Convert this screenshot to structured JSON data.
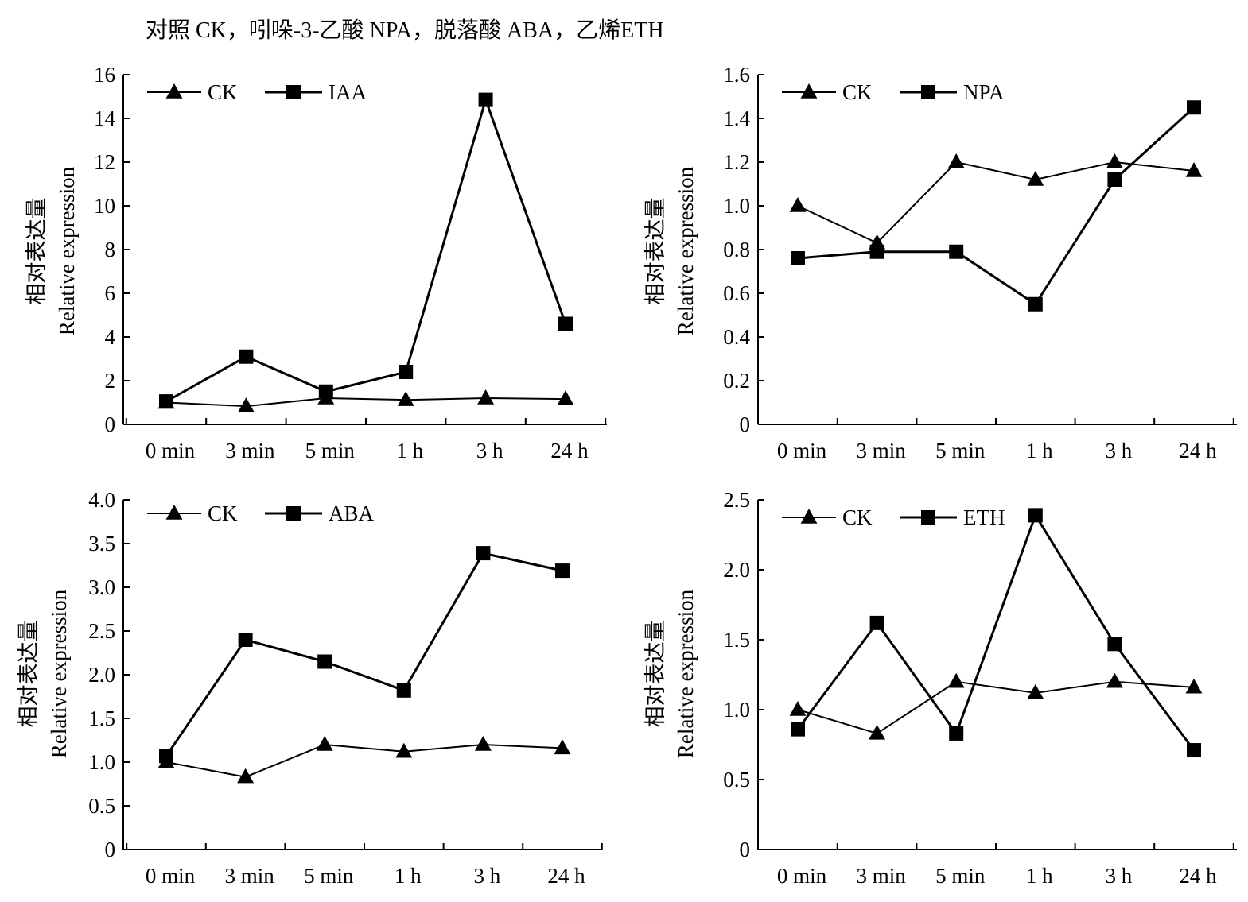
{
  "caption": "对照 CK，吲哚-3-乙酸 NPA，脱落酸 ABA，乙烯ETH",
  "chart_data": [
    {
      "type": "line",
      "categories": [
        "0 min",
        "3 min",
        "5 min",
        "1 h",
        "3 h",
        "24 h"
      ],
      "ylabel_zh": "相对表达量",
      "ylabel_en": "Relative expression",
      "ylim": [
        0,
        16
      ],
      "yticks": [
        "0",
        "2",
        "4",
        "6",
        "8",
        "10",
        "12",
        "14",
        "16"
      ],
      "legend_position": "top-left",
      "series": [
        {
          "name": "CK",
          "marker": "triangle",
          "values": [
            1.0,
            0.83,
            1.2,
            1.12,
            1.2,
            1.16
          ]
        },
        {
          "name": "IAA",
          "marker": "square",
          "values": [
            1.05,
            3.1,
            1.5,
            2.4,
            14.85,
            4.6
          ]
        }
      ]
    },
    {
      "type": "line",
      "categories": [
        "0 min",
        "3 min",
        "5 min",
        "1 h",
        "3 h",
        "24 h"
      ],
      "ylabel_zh": "相对表达量",
      "ylabel_en": "Relative expression",
      "ylim": [
        0,
        1.6
      ],
      "yticks": [
        "0",
        "0.2",
        "0.4",
        "0.6",
        "0.8",
        "1.0",
        "1.2",
        "1.4",
        "1.6"
      ],
      "legend_position": "top-left",
      "series": [
        {
          "name": "CK",
          "marker": "triangle",
          "values": [
            1.0,
            0.83,
            1.2,
            1.12,
            1.2,
            1.16
          ]
        },
        {
          "name": "NPA",
          "marker": "square",
          "values": [
            0.76,
            0.79,
            0.79,
            0.55,
            1.12,
            1.45
          ]
        }
      ]
    },
    {
      "type": "line",
      "categories": [
        "0 min",
        "3 min",
        "5 min",
        "1 h",
        "3 h",
        "24 h"
      ],
      "ylabel_zh": "相对表达量",
      "ylabel_en": "Relative expression",
      "ylim": [
        0,
        4.0
      ],
      "yticks": [
        "0",
        "0.5",
        "1.0",
        "1.5",
        "2.0",
        "2.5",
        "3.0",
        "3.5",
        "4.0"
      ],
      "legend_position": "top-left",
      "series": [
        {
          "name": "CK",
          "marker": "triangle",
          "values": [
            1.0,
            0.83,
            1.2,
            1.12,
            1.2,
            1.16
          ]
        },
        {
          "name": "ABA",
          "marker": "square",
          "values": [
            1.07,
            2.4,
            2.15,
            1.82,
            3.39,
            3.19
          ]
        }
      ]
    },
    {
      "type": "line",
      "categories": [
        "0 min",
        "3 min",
        "5 min",
        "1 h",
        "3 h",
        "24 h"
      ],
      "ylabel_zh": "相对表达量",
      "ylabel_en": "Relative expression",
      "ylim": [
        0,
        2.5
      ],
      "yticks": [
        "0",
        "0.5",
        "1.0",
        "1.5",
        "2.0",
        "2.5"
      ],
      "legend_position": "top-left",
      "series": [
        {
          "name": "CK",
          "marker": "triangle",
          "values": [
            1.0,
            0.83,
            1.2,
            1.12,
            1.2,
            1.16
          ]
        },
        {
          "name": "ETH",
          "marker": "square",
          "values": [
            0.86,
            1.62,
            0.83,
            2.39,
            1.47,
            0.71
          ]
        }
      ]
    }
  ]
}
